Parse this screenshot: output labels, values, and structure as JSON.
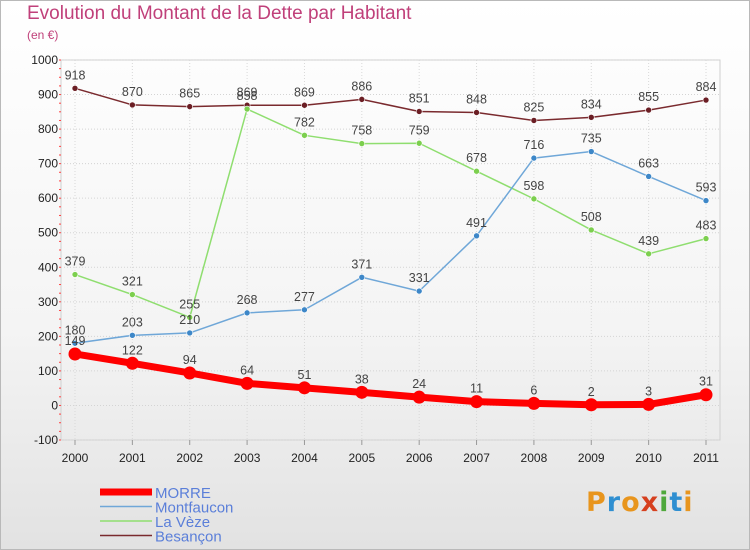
{
  "header": {
    "title": "Evolution du Montant de la Dette par Habitant",
    "subtitle": "(en €)"
  },
  "logo": {
    "text": "Proxiti",
    "colors": [
      "#e8951d",
      "#2f8fd1",
      "#e8951d",
      "#d6401f",
      "#4fa83c",
      "#2f8fd1",
      "#e8951d"
    ]
  },
  "chart_data": {
    "type": "line",
    "x": [
      2000,
      2001,
      2002,
      2003,
      2004,
      2005,
      2006,
      2007,
      2008,
      2009,
      2010,
      2011
    ],
    "ylim": [
      -100,
      1000
    ],
    "yticks": [
      -100,
      0,
      100,
      200,
      300,
      400,
      500,
      600,
      700,
      800,
      900,
      1000
    ],
    "grid": true,
    "legend_position": "bottom-left",
    "series": [
      {
        "name": "Besançon",
        "color": "#7a2a2e",
        "marker": "#6b1e24",
        "width": 1.5,
        "values": [
          918,
          870,
          865,
          869,
          869,
          886,
          851,
          848,
          825,
          834,
          855,
          884
        ]
      },
      {
        "name": "La Vèze",
        "color": "#8fde6f",
        "marker": "#7ccf4e",
        "width": 1.5,
        "values": [
          379,
          321,
          255,
          858,
          782,
          758,
          759,
          678,
          598,
          508,
          439,
          483
        ]
      },
      {
        "name": "Montfaucon",
        "color": "#6fa7d8",
        "marker": "#3d87c8",
        "width": 1.5,
        "values": [
          180,
          203,
          210,
          268,
          277,
          371,
          331,
          491,
          716,
          735,
          663,
          593
        ],
        "labels": [
          "180",
          "203",
          "210",
          "268",
          "277",
          "371",
          "331",
          "491",
          "716",
          "735",
          "663",
          "593"
        ]
      },
      {
        "name": "MORRE",
        "color": "#ff0000",
        "marker": "#ff0000",
        "width": 7,
        "values": [
          149,
          122,
          94,
          64,
          51,
          38,
          24,
          11,
          6,
          2,
          3,
          31
        ],
        "labels": [
          "149",
          "122",
          "94",
          "64",
          "51",
          "38",
          "24",
          "11",
          "6",
          "2",
          "3",
          "31"
        ]
      }
    ]
  }
}
